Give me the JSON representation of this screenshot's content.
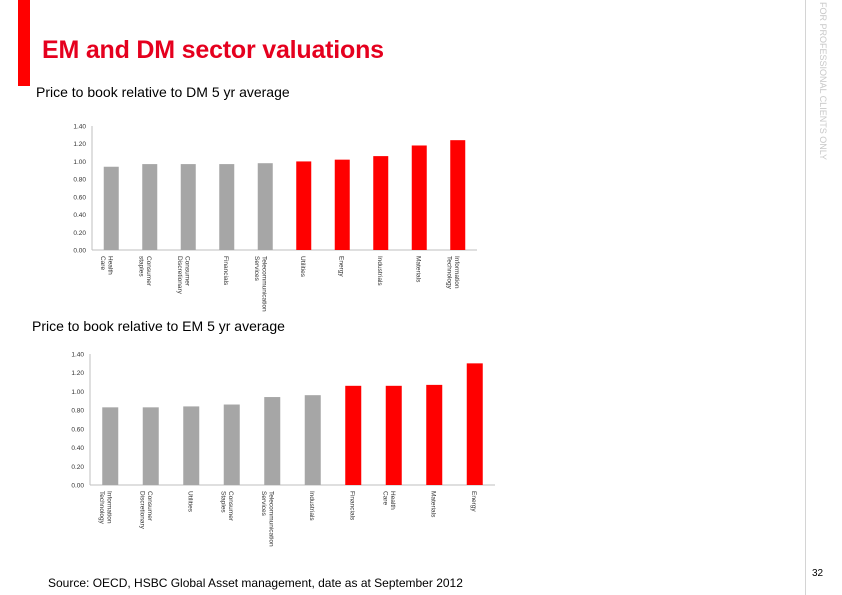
{
  "header": {
    "title": "EM and DM sector valuations",
    "vertical_note": "FOR PROFESSIONAL CLIENTS ONLY"
  },
  "chart_data": [
    {
      "type": "bar",
      "title": "Price to book relative to DM 5 yr average",
      "categories": [
        "Health Care",
        "Consumer staples",
        "Consumer Discretionary",
        "Financials",
        "Telecommunication Services",
        "Utilities",
        "Energy",
        "Industrials",
        "Materials",
        "Information Technology"
      ],
      "values": [
        0.94,
        0.97,
        0.97,
        0.97,
        0.98,
        1.0,
        1.02,
        1.06,
        1.18,
        1.24
      ],
      "colors": [
        "#a6a6a6",
        "#a6a6a6",
        "#a6a6a6",
        "#a6a6a6",
        "#a6a6a6",
        "#ff0000",
        "#ff0000",
        "#ff0000",
        "#ff0000",
        "#ff0000"
      ],
      "ylim": [
        0,
        1.4
      ],
      "yticks": [
        "0.00",
        "0.20",
        "0.40",
        "0.60",
        "0.80",
        "1.00",
        "1.20",
        "1.40"
      ],
      "grid": false
    },
    {
      "type": "bar",
      "title": "Price to book relative to EM 5 yr average",
      "categories": [
        "Information Technology",
        "Consumer Discretionary",
        "Utilities",
        "Consumer Staples",
        "Telecommunication Services",
        "Industrials",
        "Financials",
        "Health Care",
        "Materials",
        "Energy"
      ],
      "values": [
        0.83,
        0.83,
        0.84,
        0.86,
        0.94,
        0.96,
        1.06,
        1.06,
        1.07,
        1.3
      ],
      "colors": [
        "#a6a6a6",
        "#a6a6a6",
        "#a6a6a6",
        "#a6a6a6",
        "#a6a6a6",
        "#a6a6a6",
        "#ff0000",
        "#ff0000",
        "#ff0000",
        "#ff0000"
      ],
      "ylim": [
        0,
        1.4
      ],
      "yticks": [
        "0.00",
        "0.20",
        "0.40",
        "0.60",
        "0.80",
        "1.00",
        "1.20",
        "1.40"
      ],
      "grid": false
    }
  ],
  "footer": {
    "source": "Source: OECD, HSBC Global Asset management,  date as at September 2012",
    "page_number": "32"
  }
}
